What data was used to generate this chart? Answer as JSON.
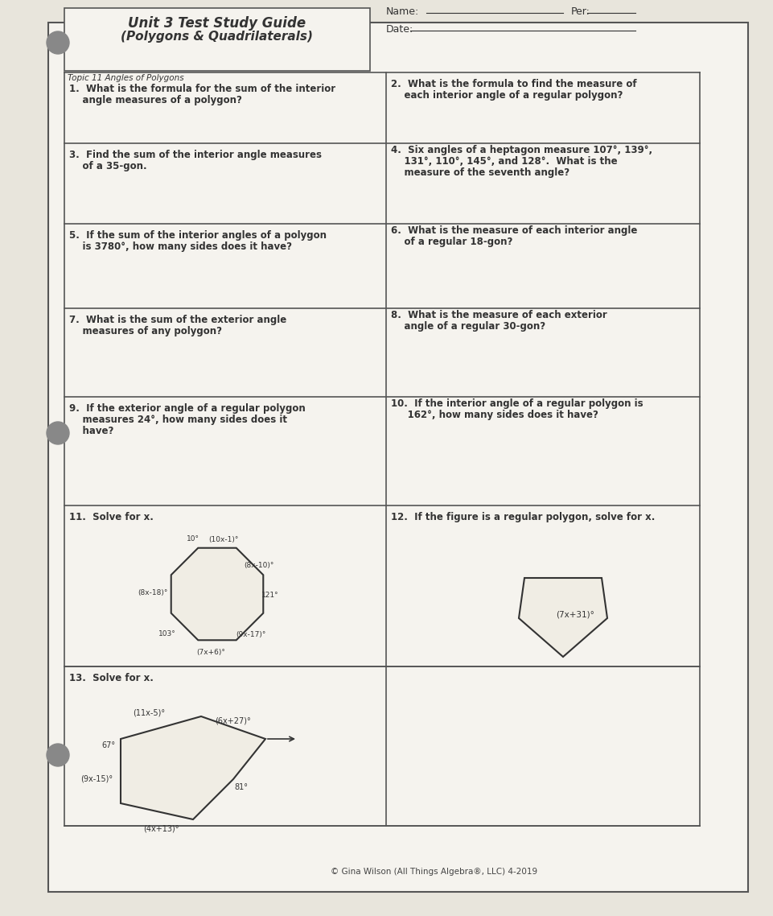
{
  "title_line1": "Unit 3 Test Study Guide",
  "title_line2": "(Polygons & Quadrilaterals)",
  "topic_label": "Topic 11 Angles of Polygons",
  "name_label": "Name:",
  "per_label": "Per:",
  "date_label": "Date:",
  "bg_color": "#e8e5dc",
  "paper_color": "#f5f3ee",
  "cell_color": "#f0ede4",
  "border_color": "#555555",
  "text_color": "#333333",
  "questions": [
    {
      "num": "1.",
      "text": "What is the formula for the sum of the interior\nangle measures of a polygon?"
    },
    {
      "num": "2.",
      "text": "What is the formula to find the measure of\neach interior angle of a regular polygon?"
    },
    {
      "num": "3.",
      "text": "Find the sum of the interior angle measures\nof a 35-gon."
    },
    {
      "num": "4.",
      "text": "Six angles of a heptagon measure 107°, 139°,\n131°, 110°, 145°, and 128°. What is the\nmeasure of the seventh angle?"
    },
    {
      "num": "5.",
      "text": "If the sum of the interior angles of a polygon\nis 3780°, how many sides does it have?"
    },
    {
      "num": "6.",
      "text": "What is the measure of each interior angle\nof a regular 18-gon?"
    },
    {
      "num": "7.",
      "text": "What is the sum of the exterior angle\nmeasures of any polygon?"
    },
    {
      "num": "8.",
      "text": "What is the measure of each exterior\nangle of a regular 30-gon?"
    },
    {
      "num": "9.",
      "text": "If the exterior angle of a regular polygon\nmeasures 24°, how many sides does it\nhave?"
    },
    {
      "num": "10.",
      "text": "If the interior angle of a regular polygon is\n162°, how many sides does it have?"
    },
    {
      "num": "11.",
      "text": "Solve for x."
    },
    {
      "num": "12.",
      "text": "If the figure is a regular polygon, solve for x."
    },
    {
      "num": "13.",
      "text": "Solve for x."
    }
  ],
  "footer": "© Gina Wilson (All Things Algebra®, LLC) 4-2019"
}
